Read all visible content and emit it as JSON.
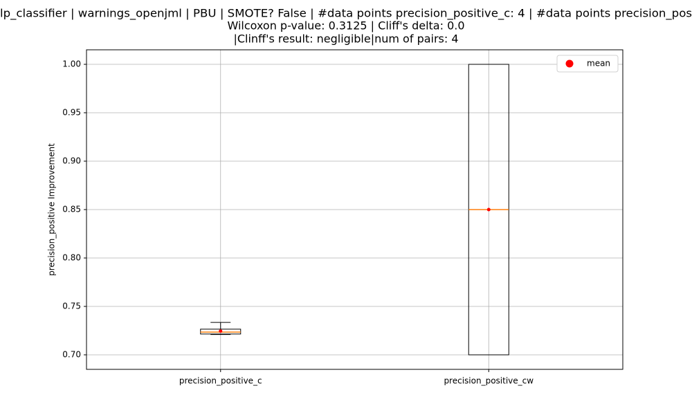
{
  "chart_data": {
    "type": "box",
    "title": [
      "lp_classifier | warnings_openjml | PBU | SMOTE? False | #data points precision_positive_c: 4 | #data points precision_pos",
      "Wilcoxon p-value: 0.3125 | Cliff's delta: 0.0",
      "|Clinff's result: negligible|num of pairs: 4"
    ],
    "ylabel": "precision_positive Improvement",
    "categories": [
      "precision_positive_c",
      "precision_positive_cw"
    ],
    "boxes": [
      {
        "whislo": 0.721,
        "q1": 0.7215,
        "med": 0.7235,
        "q3": 0.7265,
        "whishi": 0.7335,
        "mean": 0.7245
      },
      {
        "whislo": 0.7,
        "q1": 0.7,
        "med": 0.85,
        "q3": 1.0,
        "whishi": 1.0,
        "mean": 0.85
      }
    ],
    "legend": {
      "label": "mean",
      "color": "red",
      "position": "upper right"
    },
    "median_color": "#ff7f0e",
    "ylim": [
      0.685,
      1.015
    ],
    "yticks": [
      {
        "value": 0.7,
        "label": "0.70"
      },
      0.75,
      {
        "value": 0.8,
        "label": "0.80"
      },
      0.85,
      {
        "value": 0.9,
        "label": "0.90"
      },
      0.95,
      {
        "value": 1.0,
        "label": "1.00"
      }
    ],
    "grid": true
  }
}
